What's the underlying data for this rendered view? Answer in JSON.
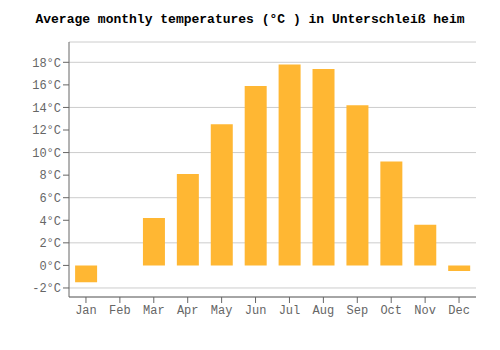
{
  "chart_data": {
    "type": "bar",
    "title": "Average monthly temperatures (°C ) in Unterschleiß heim",
    "categories": [
      "Jan",
      "Feb",
      "Mar",
      "Apr",
      "May",
      "Jun",
      "Jul",
      "Aug",
      "Sep",
      "Oct",
      "Nov",
      "Dec"
    ],
    "values": [
      -1.5,
      0.0,
      4.2,
      8.1,
      12.5,
      15.9,
      17.8,
      17.4,
      14.2,
      9.2,
      3.6,
      -0.5
    ],
    "color": "#FFB733",
    "ylim": [
      -2.8,
      19.8
    ],
    "yticks": [
      {
        "value": -2,
        "label": "-2°C"
      },
      {
        "value": 0,
        "label": "0°C"
      },
      {
        "value": 2,
        "label": "2°C"
      },
      {
        "value": 4,
        "label": "4°C"
      },
      {
        "value": 6,
        "label": "6°C"
      },
      {
        "value": 8,
        "label": "8°C"
      },
      {
        "value": 10,
        "label": "10°C"
      },
      {
        "value": 12,
        "label": "12°C"
      },
      {
        "value": 14,
        "label": "14°C"
      },
      {
        "value": 16,
        "label": "16°C"
      },
      {
        "value": 18,
        "label": "18°C"
      }
    ],
    "grid": true
  }
}
